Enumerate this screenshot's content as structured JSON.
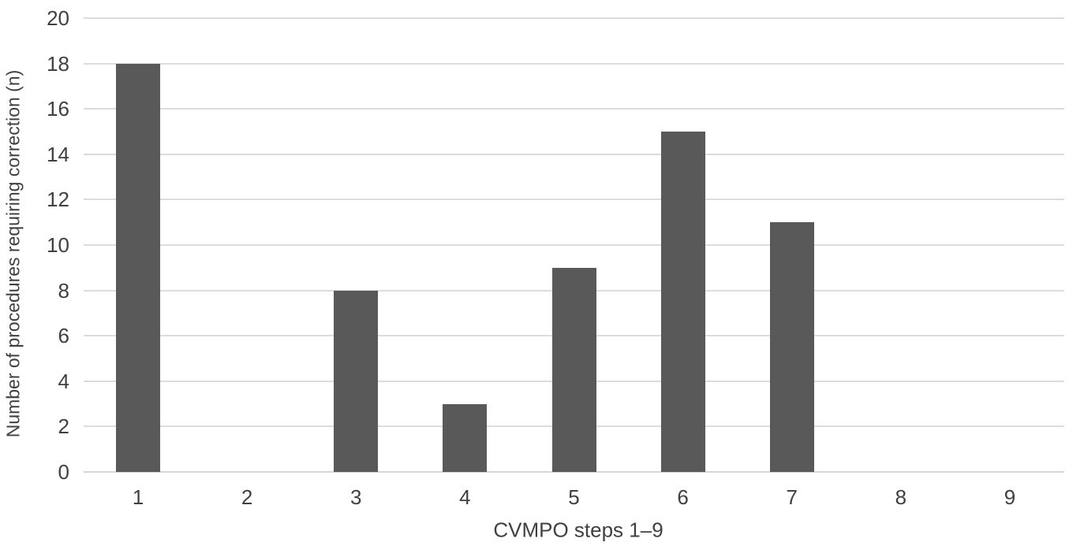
{
  "chart_data": {
    "type": "bar",
    "title": "",
    "xlabel": "CVMPO steps 1–9",
    "ylabel": "Number of procedures requiring correction (n)",
    "categories": [
      "1",
      "2",
      "3",
      "4",
      "5",
      "6",
      "7",
      "8",
      "9"
    ],
    "values": [
      18,
      0,
      8,
      3,
      9,
      15,
      11,
      0,
      0
    ],
    "ylim": [
      0,
      20
    ],
    "ytick_step": 2,
    "ytick_labels": [
      "0",
      "2",
      "4",
      "6",
      "8",
      "10",
      "12",
      "14",
      "16",
      "18",
      "20"
    ],
    "grid": "horizontal-on",
    "legend": "none",
    "colors": {
      "bar": "#595959",
      "gridline": "#dcdcdc",
      "axis_text": "#404040",
      "background": "#ffffff"
    }
  }
}
